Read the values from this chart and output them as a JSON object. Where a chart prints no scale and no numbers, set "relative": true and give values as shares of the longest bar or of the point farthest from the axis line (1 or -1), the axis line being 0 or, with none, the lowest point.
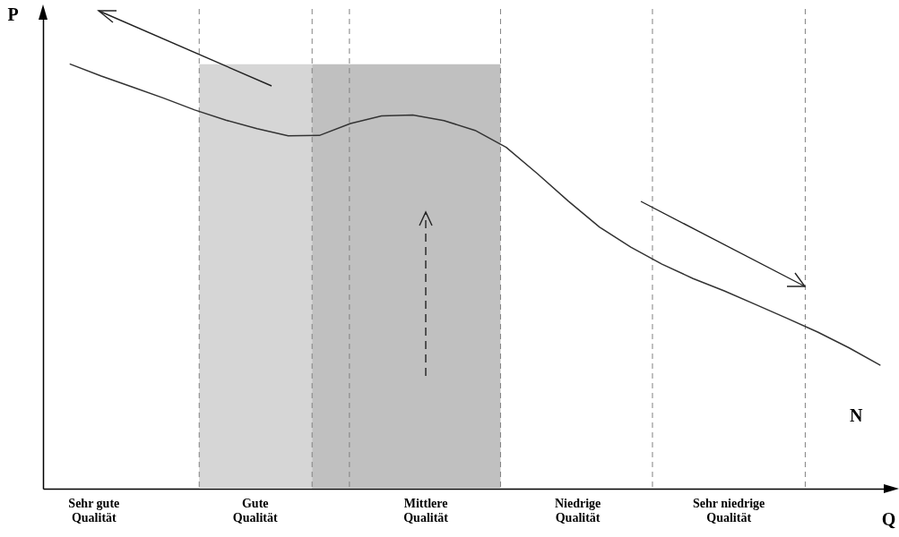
{
  "chart_data": {
    "type": "line",
    "relative": true,
    "xlabel": "Q",
    "ylabel": "P",
    "tick_labels": false,
    "line_style": "solid",
    "marker": "none",
    "categories": [
      null,
      null,
      null,
      null,
      null,
      null,
      null,
      null,
      null,
      null,
      null,
      null,
      null,
      null,
      null,
      null,
      null,
      null,
      null,
      null,
      null,
      null,
      null,
      null,
      null,
      null,
      null
    ],
    "series": [
      {
        "color": "#333333",
        "values": [
          1.0,
          0.972,
          0.946,
          0.92,
          0.892,
          0.868,
          0.848,
          0.831,
          0.832,
          0.86,
          0.878,
          0.88,
          0.867,
          0.844,
          0.804,
          0.742,
          0.677,
          0.616,
          0.569,
          0.529,
          0.495,
          0.466,
          0.434,
          0.402,
          0.369,
          0.332,
          0.291
        ]
      }
    ],
    "annotations": [
      "Sehr gute\nQualität",
      "Gute\nQualität",
      "Mittlere\nQualität",
      "Niedrige\nQualität",
      "Sehr niedrige\nQualität",
      "N"
    ]
  }
}
